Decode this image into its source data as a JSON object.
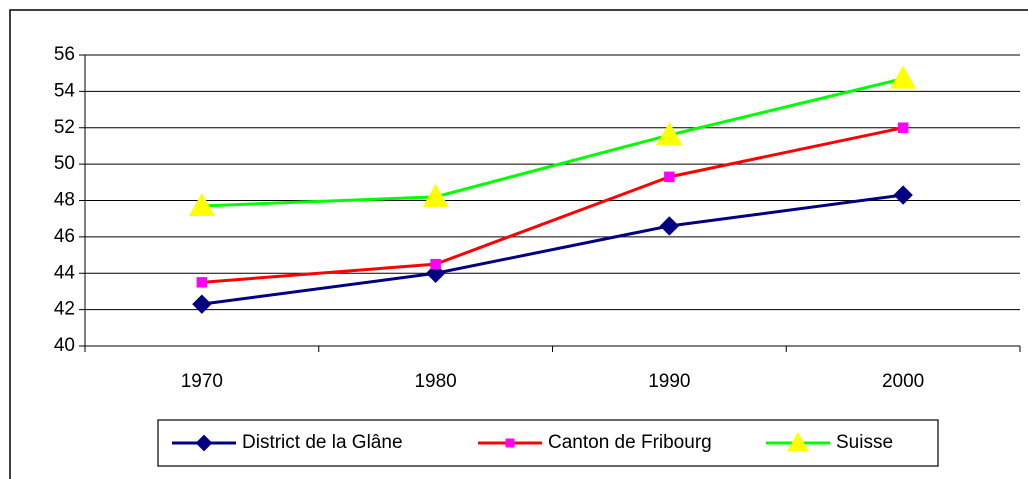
{
  "chart_data": {
    "type": "line",
    "categories": [
      "1970",
      "1980",
      "1990",
      "2000"
    ],
    "series": [
      {
        "name": "District de la Glâne",
        "color": "#000080",
        "marker": "diamond",
        "marker_color": "#000080",
        "values": [
          42.3,
          44.0,
          46.6,
          48.3
        ]
      },
      {
        "name": "Canton de Fribourg",
        "color": "#ff0000",
        "marker": "square",
        "marker_color": "#ff00ff",
        "values": [
          43.5,
          44.5,
          49.3,
          52.0
        ]
      },
      {
        "name": "Suisse",
        "color": "#00ff00",
        "marker": "triangle",
        "marker_color": "#ffff00",
        "values": [
          47.7,
          48.2,
          51.6,
          54.7
        ]
      }
    ],
    "ylim": [
      40,
      56
    ],
    "yticks": [
      40,
      42,
      44,
      46,
      48,
      50,
      52,
      54,
      56
    ],
    "grid": true,
    "legend": "bottom"
  }
}
